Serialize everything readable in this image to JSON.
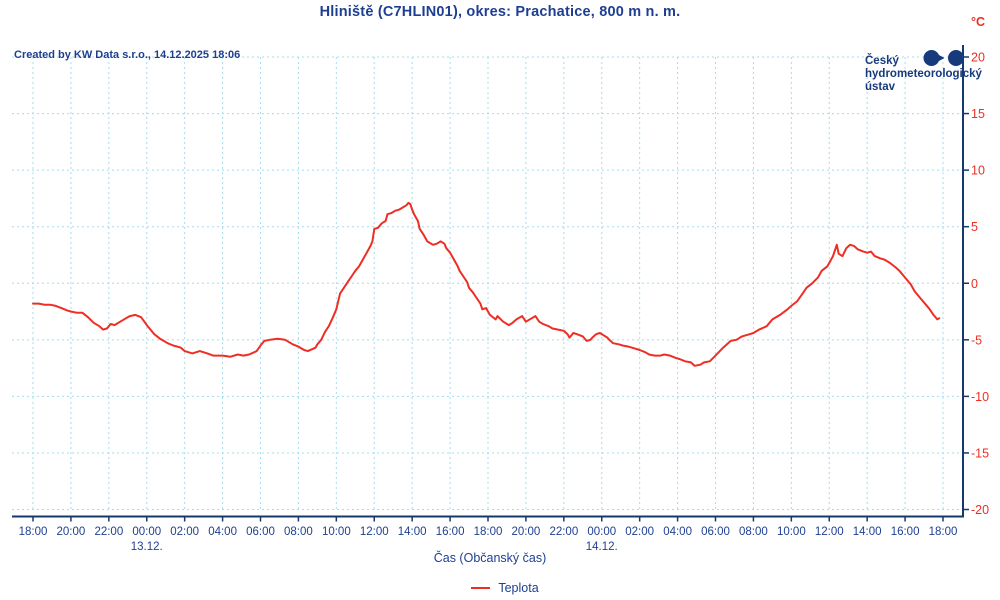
{
  "header": {
    "title": "Hliniště (C7HLIN01), okres: Prachatice, 800 m n. m.",
    "created_by": "Created by KW Data s.r.o., 14.12.2025 18:06"
  },
  "logo": {
    "name_lines": [
      "Český",
      "hydrometeorologický",
      "ústav"
    ]
  },
  "chart_data": {
    "type": "line",
    "title": "Hliniště (C7HLIN01), okres: Prachatice, 800 m n. m.",
    "xlabel": "Čas (Občanský čas)",
    "ylabel": "°C",
    "ylim": [
      -20,
      20
    ],
    "grid": true,
    "x_axis": {
      "tick_interval_hours": 2,
      "span_hours": 48,
      "tick_labels": [
        "18:00",
        "20:00",
        "22:00",
        "00:00",
        "02:00",
        "04:00",
        "06:00",
        "08:00",
        "10:00",
        "12:00",
        "14:00",
        "16:00",
        "18:00",
        "20:00",
        "22:00",
        "00:00",
        "02:00",
        "04:00",
        "06:00",
        "08:00",
        "10:00",
        "12:00",
        "14:00",
        "16:00",
        "18:00"
      ],
      "date_labels": [
        {
          "text": "13.12.",
          "tick_index": 3
        },
        {
          "text": "14.12.",
          "tick_index": 15
        }
      ]
    },
    "y_axis": {
      "unit": "°C",
      "tick_values": [
        20,
        15,
        10,
        5,
        0,
        -5,
        -10,
        -15,
        -20
      ]
    },
    "legend": {
      "position": "bottom",
      "entries": [
        {
          "label": "Teplota",
          "color": "#ee2e24"
        }
      ]
    },
    "series": [
      {
        "name": "Teplota",
        "color": "#ee2e24",
        "points_hours_degC": [
          [
            0,
            -1.8
          ],
          [
            0.3,
            -1.8
          ],
          [
            0.6,
            -1.9
          ],
          [
            0.9,
            -1.9
          ],
          [
            1.2,
            -2.0
          ],
          [
            1.5,
            -2.2
          ],
          [
            1.8,
            -2.4
          ],
          [
            2.0,
            -2.5
          ],
          [
            2.3,
            -2.6
          ],
          [
            2.6,
            -2.6
          ],
          [
            2.9,
            -3.0
          ],
          [
            3.2,
            -3.5
          ],
          [
            3.5,
            -3.8
          ],
          [
            3.7,
            -4.1
          ],
          [
            3.9,
            -4.0
          ],
          [
            4.1,
            -3.6
          ],
          [
            4.3,
            -3.7
          ],
          [
            4.6,
            -3.4
          ],
          [
            4.9,
            -3.1
          ],
          [
            5.1,
            -2.9
          ],
          [
            5.4,
            -2.8
          ],
          [
            5.7,
            -3.0
          ],
          [
            6.0,
            -3.7
          ],
          [
            6.2,
            -4.1
          ],
          [
            6.4,
            -4.5
          ],
          [
            6.7,
            -4.9
          ],
          [
            6.9,
            -5.1
          ],
          [
            7.1,
            -5.3
          ],
          [
            7.4,
            -5.5
          ],
          [
            7.8,
            -5.7
          ],
          [
            8.0,
            -6.0
          ],
          [
            8.4,
            -6.2
          ],
          [
            8.8,
            -6.0
          ],
          [
            9.2,
            -6.2
          ],
          [
            9.5,
            -6.4
          ],
          [
            10.0,
            -6.4
          ],
          [
            10.4,
            -6.5
          ],
          [
            10.8,
            -6.3
          ],
          [
            11.1,
            -6.4
          ],
          [
            11.4,
            -6.3
          ],
          [
            11.8,
            -6.0
          ],
          [
            12.0,
            -5.5
          ],
          [
            12.2,
            -5.1
          ],
          [
            12.5,
            -5.0
          ],
          [
            12.9,
            -4.9
          ],
          [
            13.3,
            -5.0
          ],
          [
            13.7,
            -5.4
          ],
          [
            14.0,
            -5.6
          ],
          [
            14.3,
            -5.9
          ],
          [
            14.5,
            -6.0
          ],
          [
            14.9,
            -5.7
          ],
          [
            15.0,
            -5.4
          ],
          [
            15.2,
            -5.0
          ],
          [
            15.4,
            -4.3
          ],
          [
            15.6,
            -3.8
          ],
          [
            15.8,
            -3.1
          ],
          [
            16.0,
            -2.3
          ],
          [
            16.2,
            -0.9
          ],
          [
            16.4,
            -0.4
          ],
          [
            16.6,
            0.1
          ],
          [
            16.8,
            0.6
          ],
          [
            17.0,
            1.1
          ],
          [
            17.2,
            1.5
          ],
          [
            17.4,
            2.1
          ],
          [
            17.6,
            2.7
          ],
          [
            17.8,
            3.3
          ],
          [
            17.9,
            3.7
          ],
          [
            18.0,
            4.8
          ],
          [
            18.2,
            4.9
          ],
          [
            18.4,
            5.3
          ],
          [
            18.6,
            5.5
          ],
          [
            18.7,
            6.1
          ],
          [
            18.9,
            6.2
          ],
          [
            19.1,
            6.4
          ],
          [
            19.3,
            6.5
          ],
          [
            19.5,
            6.7
          ],
          [
            19.7,
            6.9
          ],
          [
            19.8,
            7.1
          ],
          [
            19.9,
            7.0
          ],
          [
            20.0,
            6.5
          ],
          [
            20.1,
            6.1
          ],
          [
            20.3,
            5.5
          ],
          [
            20.4,
            4.8
          ],
          [
            20.6,
            4.3
          ],
          [
            20.8,
            3.7
          ],
          [
            20.9,
            3.6
          ],
          [
            21.1,
            3.4
          ],
          [
            21.3,
            3.5
          ],
          [
            21.5,
            3.7
          ],
          [
            21.7,
            3.5
          ],
          [
            21.8,
            3.1
          ],
          [
            22.0,
            2.7
          ],
          [
            22.2,
            2.1
          ],
          [
            22.4,
            1.5
          ],
          [
            22.5,
            1.1
          ],
          [
            22.7,
            0.6
          ],
          [
            22.9,
            0.1
          ],
          [
            23.0,
            -0.4
          ],
          [
            23.2,
            -0.8
          ],
          [
            23.4,
            -1.3
          ],
          [
            23.6,
            -1.8
          ],
          [
            23.7,
            -2.3
          ],
          [
            23.9,
            -2.2
          ],
          [
            24.1,
            -2.8
          ],
          [
            24.4,
            -3.2
          ],
          [
            24.5,
            -2.9
          ],
          [
            24.8,
            -3.4
          ],
          [
            25.1,
            -3.7
          ],
          [
            25.3,
            -3.5
          ],
          [
            25.5,
            -3.2
          ],
          [
            25.8,
            -2.9
          ],
          [
            26.0,
            -3.4
          ],
          [
            26.3,
            -3.1
          ],
          [
            26.5,
            -2.9
          ],
          [
            26.7,
            -3.4
          ],
          [
            26.9,
            -3.6
          ],
          [
            27.2,
            -3.8
          ],
          [
            27.4,
            -4.0
          ],
          [
            27.7,
            -4.1
          ],
          [
            28.0,
            -4.2
          ],
          [
            28.2,
            -4.5
          ],
          [
            28.3,
            -4.8
          ],
          [
            28.5,
            -4.4
          ],
          [
            28.7,
            -4.5
          ],
          [
            29.0,
            -4.7
          ],
          [
            29.2,
            -5.1
          ],
          [
            29.4,
            -5.0
          ],
          [
            29.5,
            -4.8
          ],
          [
            29.7,
            -4.5
          ],
          [
            29.9,
            -4.4
          ],
          [
            30.1,
            -4.6
          ],
          [
            30.3,
            -4.8
          ],
          [
            30.4,
            -5.0
          ],
          [
            30.6,
            -5.3
          ],
          [
            30.9,
            -5.4
          ],
          [
            31.1,
            -5.5
          ],
          [
            31.4,
            -5.6
          ],
          [
            31.6,
            -5.7
          ],
          [
            32.0,
            -5.9
          ],
          [
            32.3,
            -6.1
          ],
          [
            32.5,
            -6.3
          ],
          [
            32.8,
            -6.4
          ],
          [
            33.1,
            -6.4
          ],
          [
            33.3,
            -6.3
          ],
          [
            33.6,
            -6.4
          ],
          [
            33.9,
            -6.6
          ],
          [
            34.1,
            -6.7
          ],
          [
            34.4,
            -6.9
          ],
          [
            34.7,
            -7.0
          ],
          [
            34.9,
            -7.3
          ],
          [
            35.2,
            -7.2
          ],
          [
            35.4,
            -7.0
          ],
          [
            35.7,
            -6.9
          ],
          [
            36.0,
            -6.4
          ],
          [
            36.4,
            -5.7
          ],
          [
            36.8,
            -5.1
          ],
          [
            37.1,
            -5.0
          ],
          [
            37.4,
            -4.7
          ],
          [
            37.8,
            -4.5
          ],
          [
            38.0,
            -4.4
          ],
          [
            38.3,
            -4.1
          ],
          [
            38.7,
            -3.8
          ],
          [
            39.0,
            -3.2
          ],
          [
            39.4,
            -2.8
          ],
          [
            39.8,
            -2.3
          ],
          [
            40.0,
            -2.0
          ],
          [
            40.3,
            -1.6
          ],
          [
            40.6,
            -0.9
          ],
          [
            40.8,
            -0.4
          ],
          [
            41.1,
            0.0
          ],
          [
            41.4,
            0.5
          ],
          [
            41.6,
            1.1
          ],
          [
            41.9,
            1.5
          ],
          [
            42.0,
            1.8
          ],
          [
            42.2,
            2.4
          ],
          [
            42.4,
            3.4
          ],
          [
            42.5,
            2.6
          ],
          [
            42.7,
            2.4
          ],
          [
            42.9,
            3.1
          ],
          [
            43.1,
            3.4
          ],
          [
            43.3,
            3.3
          ],
          [
            43.5,
            3.0
          ],
          [
            43.8,
            2.8
          ],
          [
            44.0,
            2.7
          ],
          [
            44.2,
            2.8
          ],
          [
            44.4,
            2.4
          ],
          [
            44.7,
            2.2
          ],
          [
            44.9,
            2.1
          ],
          [
            45.2,
            1.8
          ],
          [
            45.5,
            1.4
          ],
          [
            45.7,
            1.1
          ],
          [
            46.0,
            0.5
          ],
          [
            46.3,
            -0.1
          ],
          [
            46.5,
            -0.7
          ],
          [
            46.8,
            -1.3
          ],
          [
            47.1,
            -1.9
          ],
          [
            47.3,
            -2.3
          ],
          [
            47.5,
            -2.8
          ],
          [
            47.7,
            -3.2
          ],
          [
            47.8,
            -3.1
          ]
        ]
      }
    ]
  },
  "colors": {
    "text_navy": "#1e3f91",
    "axis_navy": "#16386b",
    "grid_blue": "#a5dcef",
    "series_red": "#ee2e24",
    "background": "#ffffff"
  }
}
